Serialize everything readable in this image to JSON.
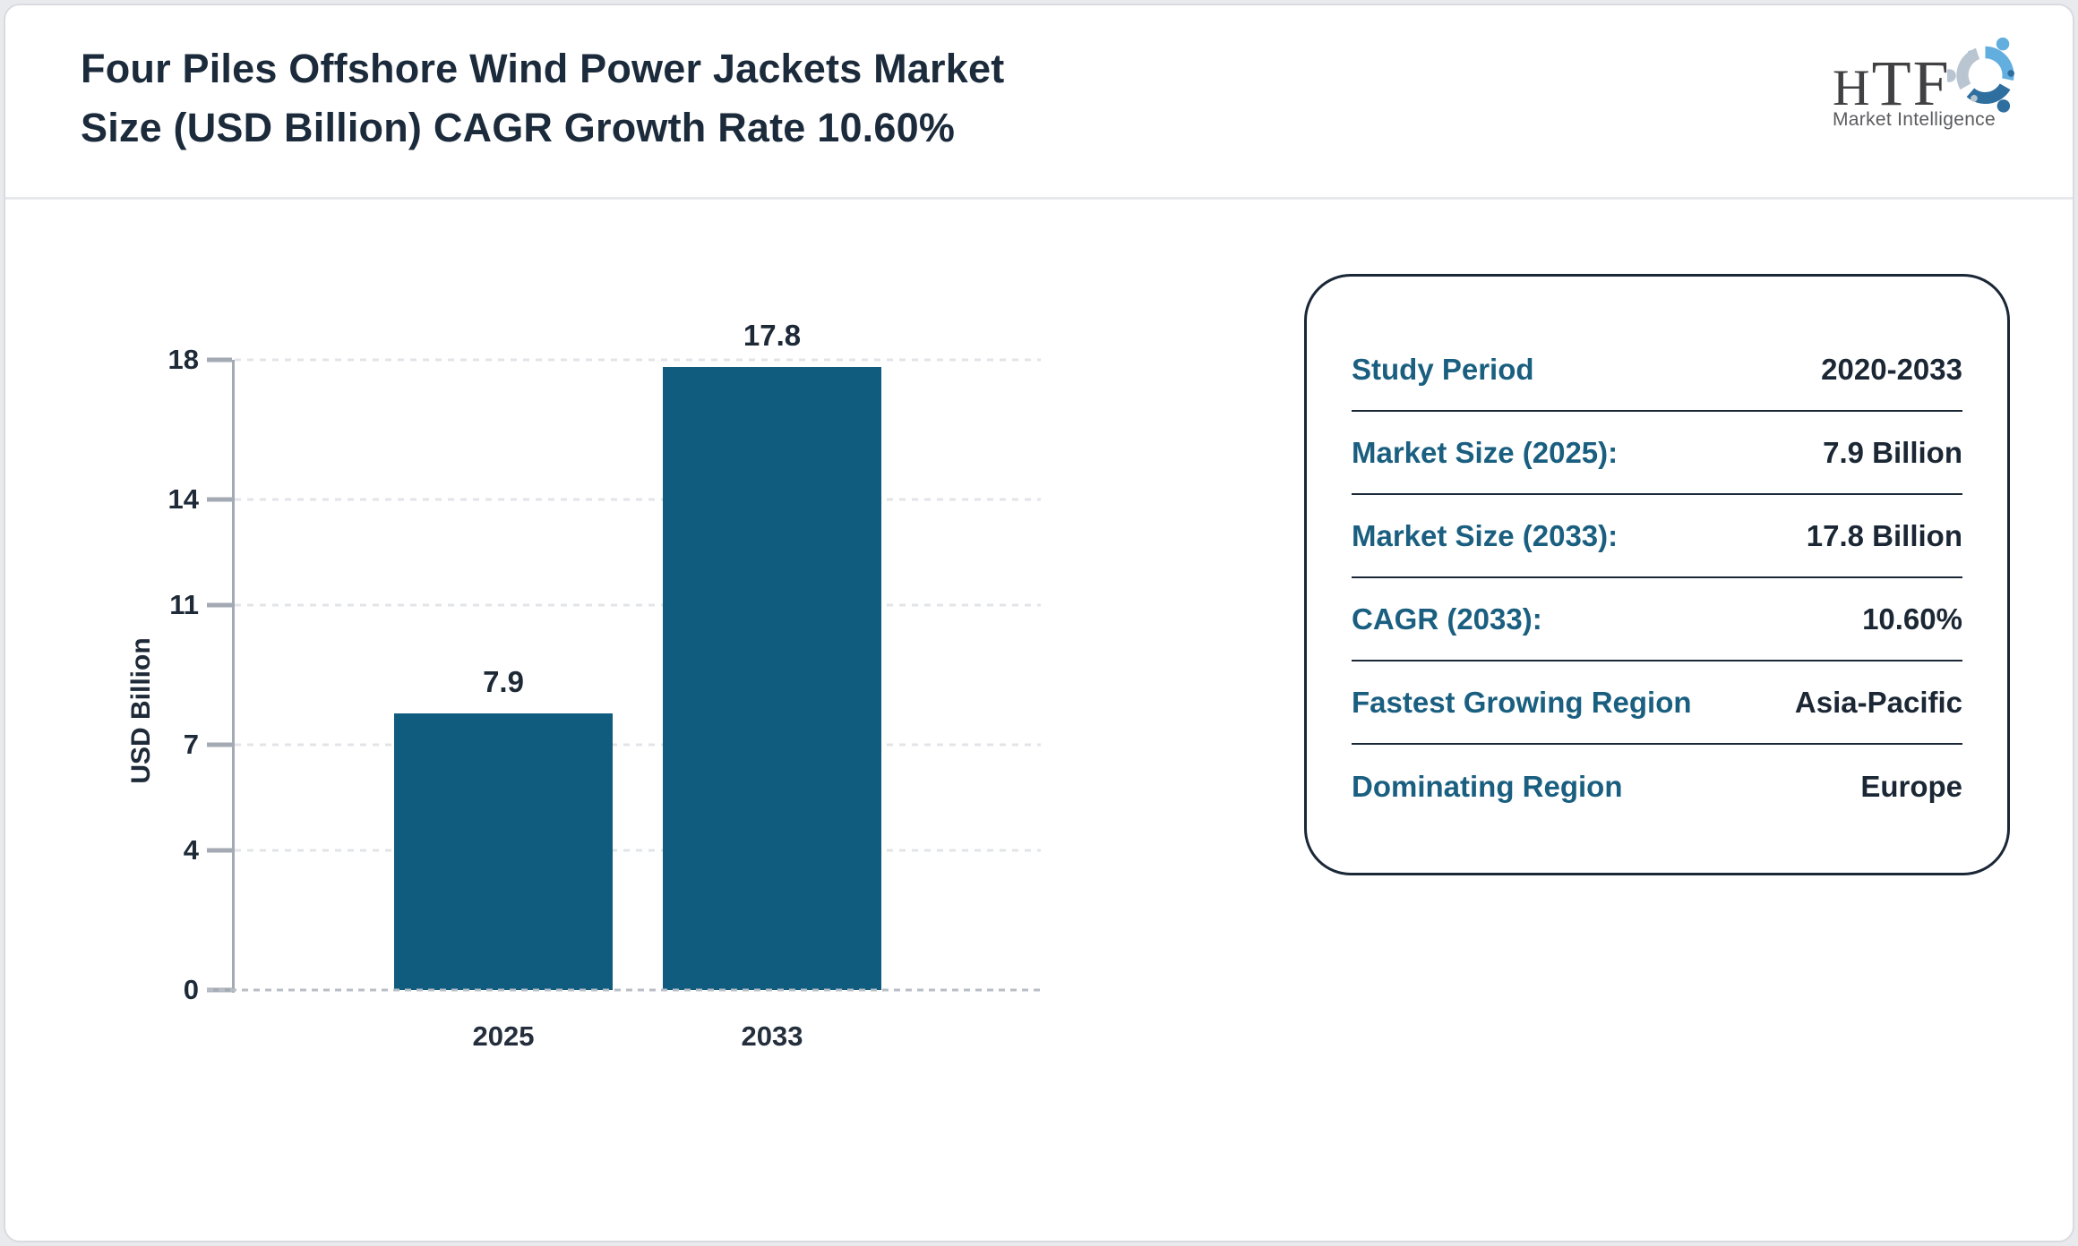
{
  "header": {
    "title_line1": "Four Piles Offshore Wind Power Jackets Market",
    "title_line2": "Size (USD Billion) CAGR Growth Rate 10.60%",
    "logo": {
      "name": "HTF",
      "subtitle": "Market Intelligence"
    }
  },
  "chart_data": {
    "type": "bar",
    "title": "Four Piles Offshore Wind Power Jackets Market Size (USD Billion) CAGR Growth Rate 10.60%",
    "categories": [
      "2025",
      "2033"
    ],
    "values": [
      7.9,
      17.8
    ],
    "data_labels": [
      "7.9",
      "17.8"
    ],
    "xlabel": "",
    "ylabel": "USD Billion",
    "yticks": [
      0,
      4,
      7,
      11,
      14,
      18
    ],
    "ylim": [
      0,
      18
    ],
    "bar_color": "#0f5c7e",
    "grid": "horizontal-dashed",
    "legend": "none"
  },
  "panel": {
    "rows": [
      {
        "label": "Study Period",
        "value": "2020-2033"
      },
      {
        "label": "Market Size (2025):",
        "value": "7.9 Billion"
      },
      {
        "label": "Market Size (2033):",
        "value": "17.8 Billion"
      },
      {
        "label": "CAGR (2033):",
        "value": "10.60%"
      },
      {
        "label": "Fastest Growing Region",
        "value": "Asia-Pacific"
      },
      {
        "label": "Dominating Region",
        "value": "Europe"
      }
    ]
  },
  "colors": {
    "bar": "#0f5c7e",
    "title_text": "#1c2b3b",
    "panel_label": "#1a5f80",
    "panel_value": "#1b2734",
    "panel_border": "#1a2737",
    "axis_gray": "#a4aab3",
    "gridline": "#e3e4e8",
    "background": "#e9eaed"
  }
}
